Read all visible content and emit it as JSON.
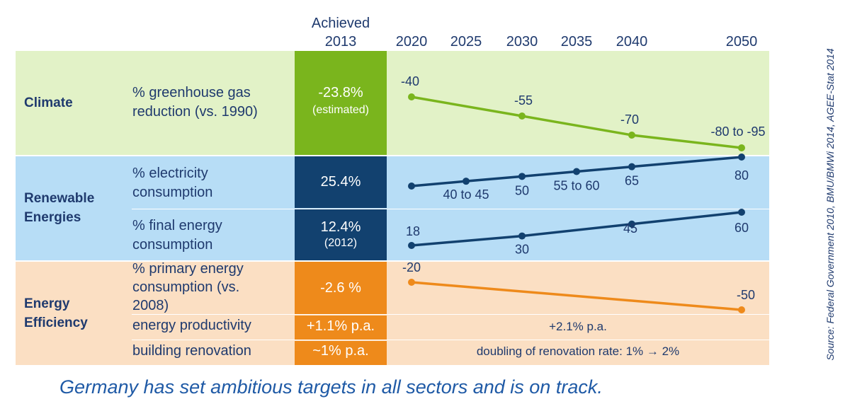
{
  "colors": {
    "climate_bg": "#e2f2c7",
    "renewable_bg": "#b7ddf6",
    "efficiency_bg": "#fbdfc3",
    "climate_accent": "#7ab51d",
    "renewable_accent": "#12416f",
    "efficiency_accent": "#ee8a1b"
  },
  "header": {
    "achieved_line1": "Achieved",
    "achieved_line2": "2013"
  },
  "sections": {
    "climate": {
      "label": "Climate"
    },
    "renewable": {
      "label_line1": "Renewable",
      "label_line2": "Energies"
    },
    "efficiency": {
      "label_line1": "Energy",
      "label_line2": "Efficiency"
    }
  },
  "metrics": {
    "ghg": {
      "line1": "% greenhouse gas",
      "line2": "reduction (vs. 1990)",
      "achieved": "-23.8%",
      "achieved_note": "(estimated)"
    },
    "electricity": {
      "line1": "% electricity",
      "line2": "consumption",
      "achieved": "25.4%"
    },
    "final_energy": {
      "line1": "% final energy",
      "line2": "consumption",
      "achieved": "12.4%",
      "achieved_note": "(2012)"
    },
    "primary_energy": {
      "line1": "% primary energy",
      "line2": "consumption (vs.",
      "line3": "2008)",
      "achieved": "-2.6 %"
    },
    "productivity": {
      "line1": "energy productivity",
      "achieved": "+1.1% p.a.",
      "target_text": "+2.1% p.a."
    },
    "renovation": {
      "line1": "building renovation",
      "achieved": "~1% p.a.",
      "target_text": "doubling of renovation rate: 1% → 2%"
    }
  },
  "chart_data": {
    "type": "line",
    "x_ticks": [
      "2020",
      "2025",
      "2030",
      "2035",
      "2040",
      "2050"
    ],
    "series": [
      {
        "key": "ghg",
        "row": "climate",
        "color": "#7ab51d",
        "years": [
          2020,
          2030,
          2040,
          2050
        ],
        "values": [
          -40,
          -55,
          -70,
          -80
        ],
        "labels": [
          "-40",
          "-55",
          "-70",
          "-80 to -95"
        ]
      },
      {
        "key": "electricity",
        "row": "electricity",
        "color": "#12416f",
        "years": [
          2020,
          2025,
          2030,
          2035,
          2040,
          2050
        ],
        "values": [
          35,
          42.5,
          50,
          57.5,
          65,
          80
        ],
        "labels": [
          "",
          "40 to 45",
          "50",
          "55 to 60",
          "65",
          "80"
        ]
      },
      {
        "key": "final_energy",
        "row": "final_energy",
        "color": "#12416f",
        "years": [
          2020,
          2030,
          2040,
          2050
        ],
        "values": [
          18,
          30,
          45,
          60
        ],
        "labels": [
          "18",
          "30",
          "45",
          "60"
        ]
      },
      {
        "key": "primary_energy",
        "row": "primary_energy",
        "color": "#ee8a1b",
        "years": [
          2020,
          2050
        ],
        "values": [
          -20,
          -50
        ],
        "labels": [
          "-20",
          "-50"
        ]
      }
    ]
  },
  "source": "Source: Federal Government 2010, BMU/BMWi 2014, AGEE-Stat 2014",
  "caption": "Germany has set ambitious targets in all sectors and is on track."
}
